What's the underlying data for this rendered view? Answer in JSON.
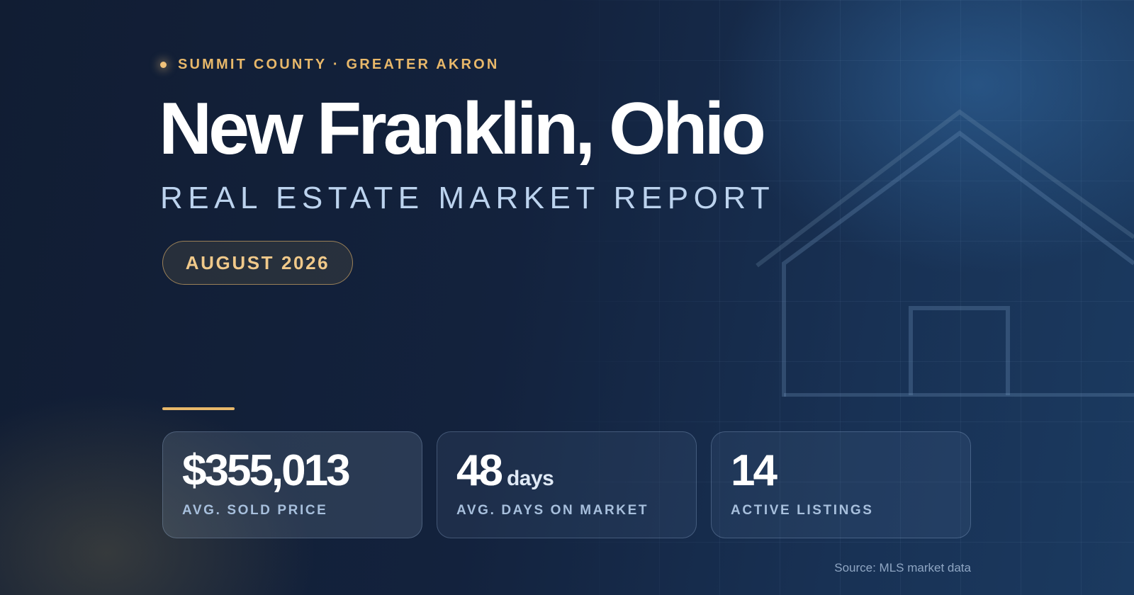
{
  "eyebrow": "SUMMIT COUNTY · GREATER AKRON",
  "title": "New Franklin, Ohio",
  "subtitle": "REAL ESTATE MARKET REPORT",
  "period": "AUGUST 2026",
  "stats": [
    {
      "value": "$355,013",
      "unit": "",
      "label": "AVG. SOLD PRICE"
    },
    {
      "value": "48",
      "unit": "days",
      "label": "AVG. DAYS ON MARKET"
    },
    {
      "value": "14",
      "unit": "",
      "label": "ACTIVE LISTINGS"
    }
  ],
  "source": "Source: MLS market data",
  "colors": {
    "accent": "#e8b86a",
    "background": "#13223d",
    "subtitle": "#bcd3ee",
    "label": "#a7bfdc"
  }
}
